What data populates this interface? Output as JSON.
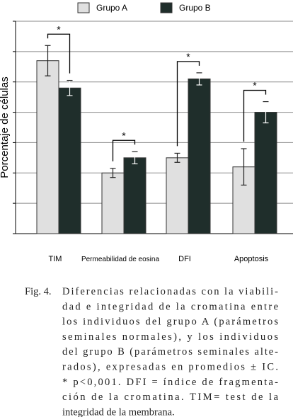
{
  "chart_data": {
    "type": "bar",
    "y_label": "Porcentaje de células",
    "categories": [
      "TIM",
      "Permeabilidad de eosina",
      "DFI",
      "Apoptosis"
    ],
    "series": [
      {
        "name": "Grupo A",
        "color": "#e0e0e0",
        "values": [
          57,
          20,
          25,
          22
        ],
        "errors": [
          5,
          1.5,
          1.5,
          6
        ]
      },
      {
        "name": "Grupo B",
        "color": "#1f2e2b",
        "values": [
          48,
          25,
          51,
          40
        ],
        "errors": [
          2.5,
          2,
          2,
          3.5
        ]
      }
    ],
    "annotations": [
      "*",
      "*",
      "*",
      "*"
    ],
    "ylim": [
      0,
      70
    ],
    "yticks": [
      0,
      10,
      20,
      30,
      40,
      50,
      60,
      70
    ],
    "grid": true,
    "legend": "top"
  },
  "caption": {
    "label": "Fig. 4.",
    "lines": [
      "Diferencias relacionadas con la viabili-",
      "dad e integridad de la cromatina entre",
      "los individuos del grupo A (parámetros",
      "seminales normales), y los individuos",
      "del grupo B (parámetros seminales alte-",
      "rados), expresadas en promedios ± IC.",
      "* p<0,001. DFI = índice de fragmenta-",
      "ción de la cromatina. TIM= test de la",
      "integridad de la membrana."
    ]
  }
}
